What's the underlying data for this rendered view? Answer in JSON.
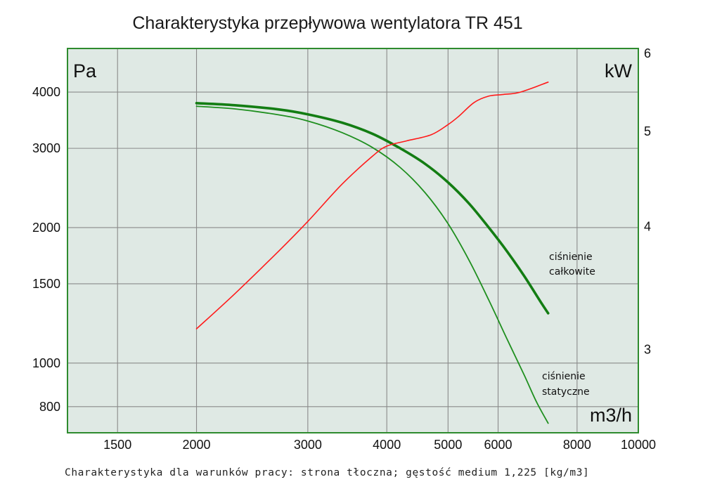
{
  "title": "Charakterystyka przepływowa wentylatora TR 451",
  "footnote": "Charakterystyka dla warunków pracy: strona tłoczna; gęstość medium 1,225 [kg/m3]",
  "chart_data": {
    "type": "line",
    "x_scale": "log",
    "y_scale": "log",
    "xlim": [
      1250,
      10000
    ],
    "ylim": [
      700,
      5000
    ],
    "y2lim": [
      2.47,
      6.07
    ],
    "grid": true,
    "xlabel": "m3/h",
    "ylabel": "Pa",
    "y2label": "kW",
    "x_ticks": [
      "1500",
      "2000",
      "3000",
      "4000",
      "5000",
      "6000",
      "8000",
      "10000"
    ],
    "y_ticks": [
      "800",
      "1000",
      "1500",
      "2000",
      "3000",
      "4000"
    ],
    "y2_ticks": [
      "3",
      "4",
      "5",
      "6"
    ],
    "colors": {
      "plot_bg": "#dfe9e4",
      "frame": "#2e8b2e",
      "grid": "#8a8a8a",
      "total": "#137d13",
      "static": "#1f8f1f",
      "power": "#ff1a1a"
    },
    "series": [
      {
        "name": "ciśnienie całkowite",
        "axis": "left",
        "points": [
          [
            2000,
            3780
          ],
          [
            2300,
            3740
          ],
          [
            2700,
            3660
          ],
          [
            3000,
            3570
          ],
          [
            3400,
            3420
          ],
          [
            3800,
            3230
          ],
          [
            4200,
            3000
          ],
          [
            4600,
            2770
          ],
          [
            5000,
            2520
          ],
          [
            5400,
            2260
          ],
          [
            5800,
            2000
          ],
          [
            6200,
            1770
          ],
          [
            6600,
            1560
          ],
          [
            7000,
            1370
          ],
          [
            7200,
            1290
          ]
        ]
      },
      {
        "name": "ciśnienie statyczne",
        "axis": "left",
        "points": [
          [
            2000,
            3720
          ],
          [
            2300,
            3670
          ],
          [
            2700,
            3560
          ],
          [
            3000,
            3450
          ],
          [
            3400,
            3250
          ],
          [
            3800,
            3010
          ],
          [
            4200,
            2720
          ],
          [
            4600,
            2390
          ],
          [
            5000,
            2040
          ],
          [
            5400,
            1690
          ],
          [
            5800,
            1380
          ],
          [
            6200,
            1130
          ],
          [
            6600,
            940
          ],
          [
            6900,
            820
          ],
          [
            7200,
            735
          ]
        ]
      },
      {
        "name": "",
        "axis": "right",
        "points": [
          [
            2000,
            3.15
          ],
          [
            2300,
            3.42
          ],
          [
            2700,
            3.78
          ],
          [
            3000,
            4.05
          ],
          [
            3400,
            4.42
          ],
          [
            3800,
            4.72
          ],
          [
            4000,
            4.83
          ],
          [
            4300,
            4.89
          ],
          [
            4700,
            4.96
          ],
          [
            5000,
            5.08
          ],
          [
            5200,
            5.18
          ],
          [
            5500,
            5.35
          ],
          [
            5800,
            5.43
          ],
          [
            6100,
            5.45
          ],
          [
            6500,
            5.48
          ],
          [
            7200,
            5.61
          ]
        ]
      }
    ]
  },
  "annotations": {
    "total_line1": "ciśnienie",
    "total_line2": "całkowite",
    "static_line1": "ciśnienie",
    "static_line2": "statyczne"
  }
}
